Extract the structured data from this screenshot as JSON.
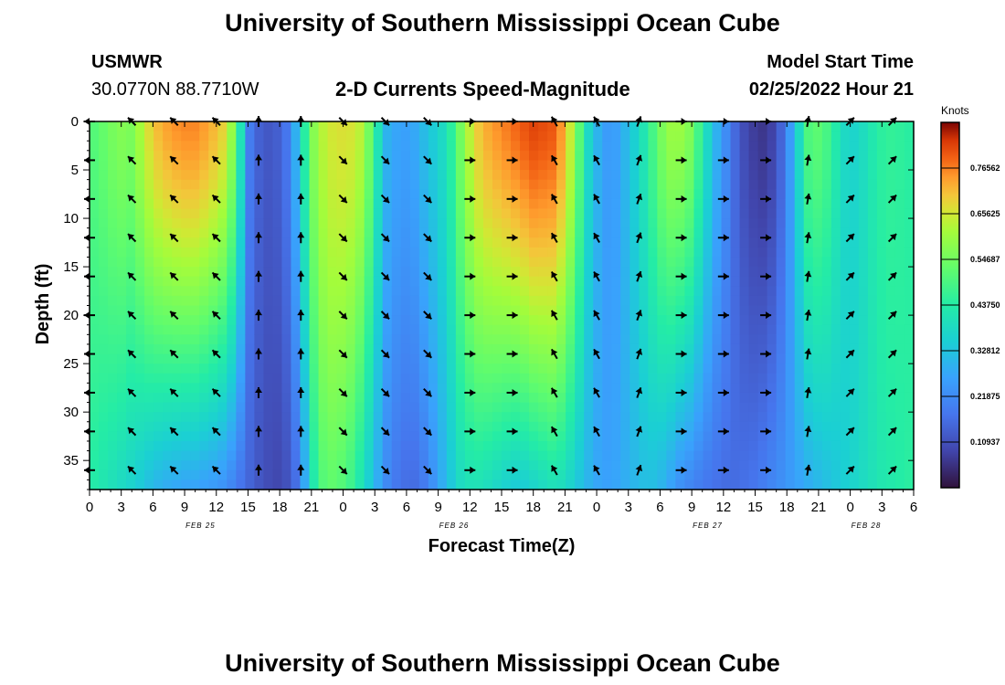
{
  "header": {
    "title": "University of Southern Mississippi Ocean Cube",
    "station": "USMWR",
    "coords": "30.0770N  88.7710W",
    "subtitle": "2-D Currents Speed-Magnitude",
    "model_label": "Model Start Time",
    "model_time": "02/25/2022 Hour 21"
  },
  "footer": {
    "title": "University of Southern Mississippi Ocean Cube"
  },
  "chart_data": {
    "type": "heatmap",
    "title": "2-D Currents Speed-Magnitude",
    "xlabel": "Forecast Time(Z)",
    "ylabel": "Depth (ft)",
    "units": "Knots",
    "x_range_hours": [
      0,
      78
    ],
    "x_ticks": [
      "0",
      "3",
      "6",
      "9",
      "12",
      "15",
      "18",
      "21",
      "0",
      "3",
      "6",
      "9",
      "12",
      "15",
      "18",
      "21",
      "0",
      "3",
      "6",
      "9",
      "12",
      "15",
      "18",
      "21",
      "0",
      "3",
      "6"
    ],
    "date_labels": [
      {
        "label": "FEB 25",
        "hour": 10.5
      },
      {
        "label": "FEB 26",
        "hour": 34.5
      },
      {
        "label": "FEB 27",
        "hour": 58.5
      },
      {
        "label": "FEB 28",
        "hour": 73.5
      }
    ],
    "y_range_ft": [
      0,
      38
    ],
    "y_ticks": [
      "0",
      "5",
      "10",
      "15",
      "20",
      "25",
      "30",
      "35"
    ],
    "colorbar_ticks": [
      "0.76562",
      "0.65625",
      "0.54687",
      "0.43750",
      "0.32812",
      "0.21875",
      "0.10937"
    ],
    "colorbar_values": [
      0.76562,
      0.65625,
      0.54687,
      0.4375,
      0.32812,
      0.21875,
      0.10937
    ],
    "colorbar_range": [
      0.0,
      0.875
    ],
    "speed_profile_hours": [
      0,
      1,
      2,
      3,
      4,
      5,
      6,
      7,
      8,
      9,
      10,
      11,
      12,
      13,
      14,
      15,
      16,
      17,
      18,
      19,
      20,
      21,
      22,
      23,
      24,
      25,
      26,
      27,
      28,
      29,
      30,
      31,
      32,
      33,
      34,
      35,
      36,
      37,
      38,
      39,
      40,
      41,
      42,
      43,
      44,
      45,
      46,
      47,
      48,
      49,
      50,
      51,
      52,
      53,
      54,
      55,
      56,
      57,
      58,
      59,
      60,
      61,
      62,
      63,
      64,
      65,
      66,
      67,
      68,
      69,
      70,
      71,
      72,
      73,
      74,
      75,
      76,
      77,
      78
    ],
    "speed_top_knots": [
      0.5,
      0.52,
      0.55,
      0.57,
      0.56,
      0.63,
      0.7,
      0.73,
      0.75,
      0.76,
      0.76,
      0.74,
      0.71,
      0.67,
      0.5,
      0.2,
      0.14,
      0.12,
      0.14,
      0.2,
      0.38,
      0.56,
      0.63,
      0.66,
      0.67,
      0.66,
      0.62,
      0.46,
      0.3,
      0.27,
      0.26,
      0.28,
      0.33,
      0.36,
      0.42,
      0.54,
      0.64,
      0.71,
      0.74,
      0.76,
      0.78,
      0.8,
      0.82,
      0.81,
      0.8,
      0.72,
      0.58,
      0.4,
      0.3,
      0.25,
      0.26,
      0.32,
      0.38,
      0.46,
      0.55,
      0.6,
      0.6,
      0.56,
      0.44,
      0.32,
      0.24,
      0.16,
      0.1,
      0.07,
      0.06,
      0.1,
      0.2,
      0.36,
      0.5,
      0.52,
      0.48,
      0.4,
      0.36,
      0.38,
      0.42,
      0.45,
      0.46,
      0.45,
      0.44
    ],
    "speed_bottom_knots": [
      0.44,
      0.42,
      0.4,
      0.38,
      0.36,
      0.33,
      0.3,
      0.28,
      0.27,
      0.26,
      0.26,
      0.25,
      0.24,
      0.22,
      0.18,
      0.15,
      0.12,
      0.1,
      0.09,
      0.12,
      0.2,
      0.4,
      0.5,
      0.52,
      0.5,
      0.46,
      0.38,
      0.3,
      0.22,
      0.18,
      0.16,
      0.16,
      0.2,
      0.26,
      0.32,
      0.38,
      0.4,
      0.4,
      0.38,
      0.36,
      0.34,
      0.34,
      0.36,
      0.38,
      0.4,
      0.38,
      0.34,
      0.3,
      0.27,
      0.26,
      0.27,
      0.29,
      0.31,
      0.32,
      0.3,
      0.26,
      0.22,
      0.2,
      0.18,
      0.17,
      0.16,
      0.16,
      0.17,
      0.18,
      0.2,
      0.22,
      0.24,
      0.26,
      0.28,
      0.3,
      0.32,
      0.34,
      0.36,
      0.38,
      0.4,
      0.42,
      0.43,
      0.44,
      0.45
    ],
    "arrow_directions_deg": [
      {
        "hour_range": [
          0,
          4
        ],
        "deg": 270
      },
      {
        "hour_range": [
          4,
          16
        ],
        "deg": 315
      },
      {
        "hour_range": [
          16,
          22
        ],
        "deg": 0
      },
      {
        "hour_range": [
          22,
          36
        ],
        "deg": 135
      },
      {
        "hour_range": [
          36,
          44
        ],
        "deg": 90
      },
      {
        "hour_range": [
          44,
          50
        ],
        "deg": 330
      },
      {
        "hour_range": [
          50,
          56
        ],
        "deg": 20
      },
      {
        "hour_range": [
          56,
          66
        ],
        "deg": 90
      },
      {
        "hour_range": [
          66,
          72
        ],
        "deg": 10
      },
      {
        "hour_range": [
          72,
          78
        ],
        "deg": 45
      }
    ]
  }
}
